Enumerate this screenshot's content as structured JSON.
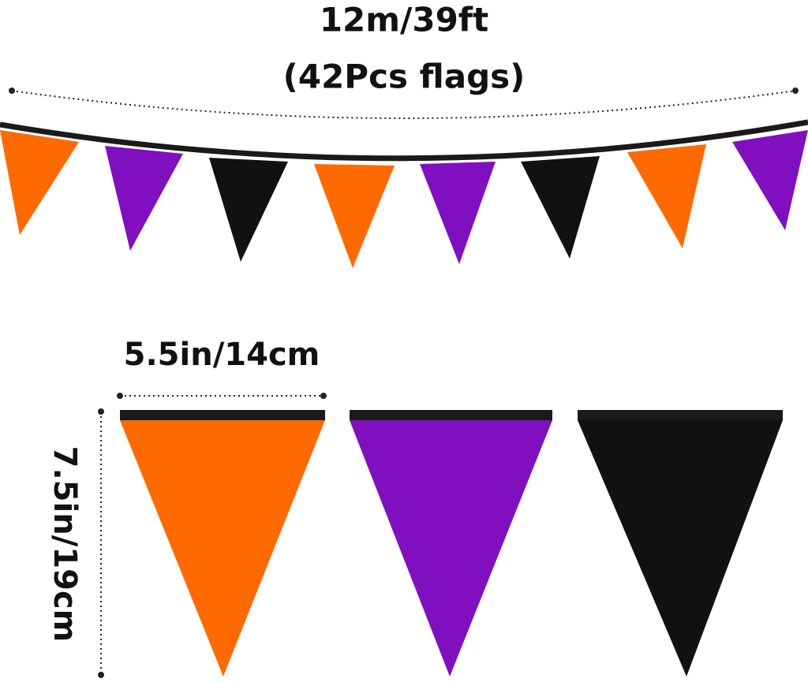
{
  "length": {
    "label": "12m/39ft",
    "count": "(42Pcs flags)"
  },
  "flag_size": {
    "width": "5.5in/14cm",
    "height": "7.5in/19cm"
  }
}
